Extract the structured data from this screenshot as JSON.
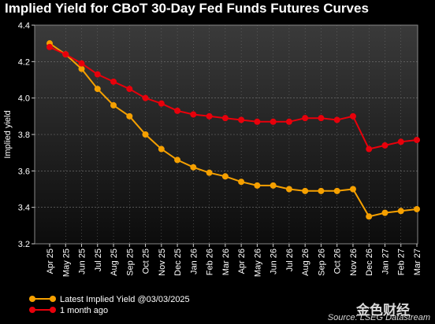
{
  "chart_data": {
    "type": "line",
    "title": "Implied Yield for CBoT 30-Day Fed Funds Futures Curves",
    "ylabel": "Implied yield",
    "xlabel": "",
    "ylim": [
      3.2,
      4.4
    ],
    "yticks": [
      "3.2",
      "3.4",
      "3.6",
      "3.8",
      "4.0",
      "4.2",
      "4.4"
    ],
    "grid": true,
    "legend_position": "bottom-left",
    "categories": [
      "Apr 25",
      "May 25",
      "Jun 25",
      "Jul 25",
      "Aug 25",
      "Sep 25",
      "Oct 25",
      "Nov 25",
      "Dec 25",
      "Jan 26",
      "Feb 26",
      "Mar 26",
      "Apr 26",
      "May 26",
      "Jun 26",
      "Jul 26",
      "Aug 26",
      "Sep 26",
      "Oct 26",
      "Nov 26",
      "Dec 26",
      "Jan 27",
      "Feb 27",
      "Mar 27"
    ],
    "series": [
      {
        "name": "Latest Implied Yield @03/03/2025",
        "color": "#f5a000",
        "values": [
          4.3,
          4.24,
          4.16,
          4.05,
          3.96,
          3.9,
          3.8,
          3.72,
          3.66,
          3.62,
          3.59,
          3.57,
          3.54,
          3.52,
          3.52,
          3.5,
          3.49,
          3.49,
          3.49,
          3.5,
          3.35,
          3.37,
          3.38,
          3.39
        ]
      },
      {
        "name": "1 month ago",
        "color": "#e8000b",
        "values": [
          4.28,
          4.24,
          4.19,
          4.13,
          4.09,
          4.05,
          4.0,
          3.97,
          3.93,
          3.91,
          3.9,
          3.89,
          3.88,
          3.87,
          3.87,
          3.87,
          3.89,
          3.89,
          3.88,
          3.9,
          3.72,
          3.74,
          3.76,
          3.77
        ]
      }
    ],
    "source": "Source: LSEG Datastream"
  },
  "watermark_text": "金色财经",
  "colors": {
    "background": "#000000",
    "plot_top": "#3a3a3a",
    "plot_bottom": "#0c0c0c",
    "grid": "#7a7a7a"
  }
}
